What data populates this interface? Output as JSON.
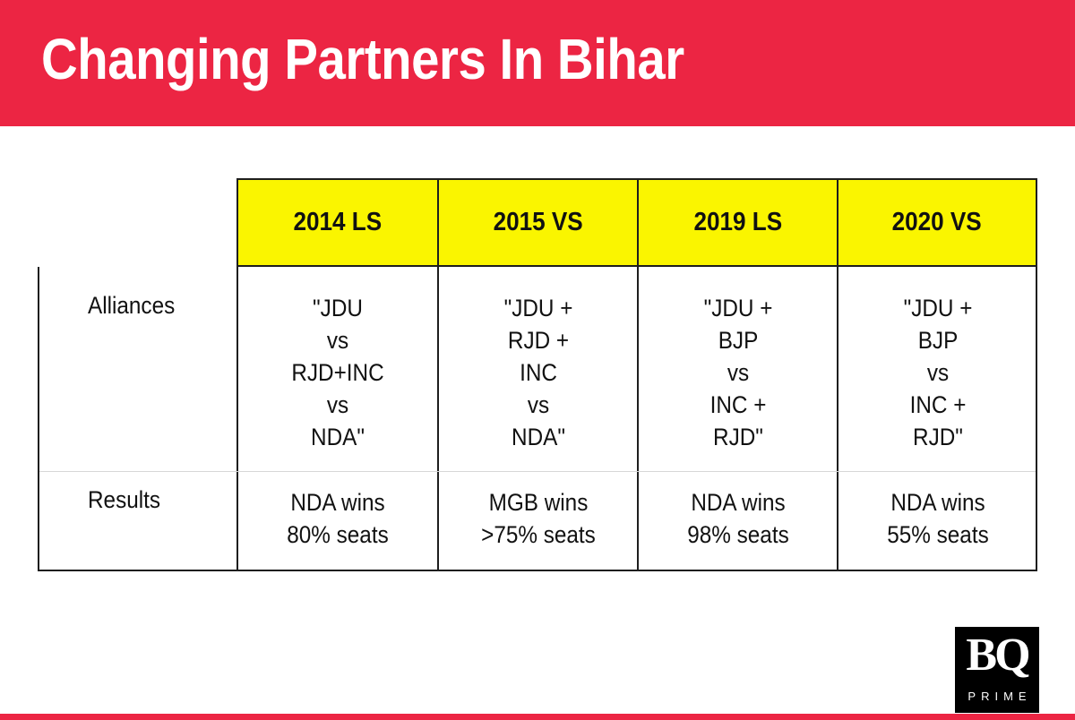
{
  "title": "Changing Partners In Bihar",
  "colors": {
    "banner": "#ec2543",
    "header_fill": "#faf500",
    "border": "#1e1e1e"
  },
  "table": {
    "columns": [
      "2014 LS",
      "2015 VS",
      "2019 LS",
      "2020 VS"
    ],
    "rows": [
      {
        "label": "Alliances",
        "cells": [
          [
            "\"JDU",
            "vs",
            "RJD+INC",
            "vs",
            "NDA\""
          ],
          [
            "\"JDU +",
            "RJD +",
            "INC",
            "vs",
            "NDA\""
          ],
          [
            "\"JDU +",
            "BJP",
            "vs",
            "INC +",
            "RJD\""
          ],
          [
            "\"JDU +",
            "BJP",
            "vs",
            "INC +",
            "RJD\""
          ]
        ]
      },
      {
        "label": "Results",
        "cells": [
          [
            "NDA wins",
            "80% seats"
          ],
          [
            "MGB wins",
            ">75% seats"
          ],
          [
            "NDA wins",
            "98% seats"
          ],
          [
            "NDA wins",
            "55% seats"
          ]
        ]
      }
    ]
  },
  "logo": {
    "mark": "BQ",
    "sub": "PRIME"
  }
}
